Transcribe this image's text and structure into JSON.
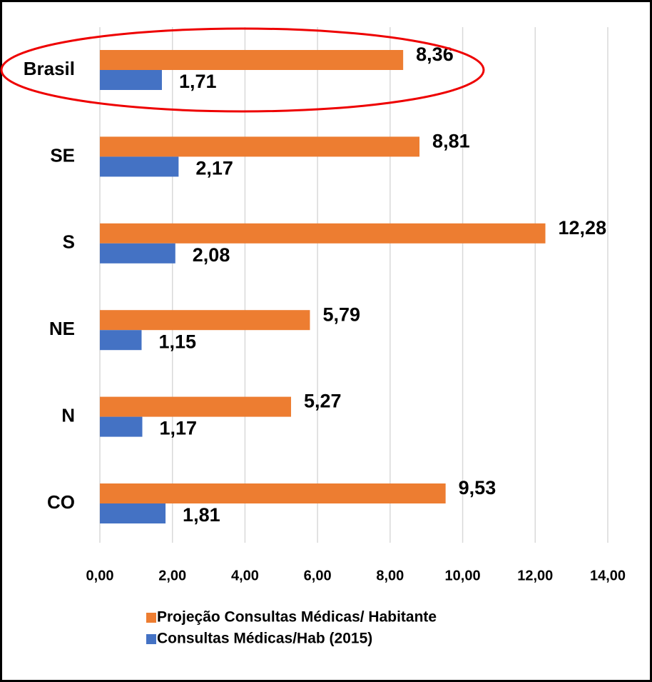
{
  "chart_data": {
    "type": "bar",
    "orientation": "horizontal",
    "categories": [
      "Brasil",
      "SE",
      "S",
      "NE",
      "N",
      "CO"
    ],
    "series": [
      {
        "name": "Projeção Consultas Médicas/ Habitante",
        "color": "#ed7d31",
        "values": [
          8.36,
          8.81,
          12.28,
          5.79,
          5.27,
          9.53
        ],
        "value_labels": [
          "8,36",
          "8,81",
          "12,28",
          "5,79",
          "5,27",
          "9,53"
        ]
      },
      {
        "name": "Consultas Médicas/Hab (2015)",
        "color": "#4472c4",
        "values": [
          1.71,
          2.17,
          2.08,
          1.15,
          1.17,
          1.81
        ],
        "value_labels": [
          "1,71",
          "2,17",
          "2,08",
          "1,15",
          "1,17",
          "1,81"
        ]
      }
    ],
    "xlim": [
      0,
      14
    ],
    "xticks": [
      {
        "value": 0,
        "label": "0,00"
      },
      {
        "value": 2,
        "label": "2,00"
      },
      {
        "value": 4,
        "label": "4,00"
      },
      {
        "value": 6,
        "label": "6,00"
      },
      {
        "value": 8,
        "label": "8,00"
      },
      {
        "value": 10,
        "label": "10,00"
      },
      {
        "value": 12,
        "label": "12,00"
      },
      {
        "value": 14,
        "label": "14,00"
      }
    ],
    "grid": true,
    "legend": "bottom"
  }
}
